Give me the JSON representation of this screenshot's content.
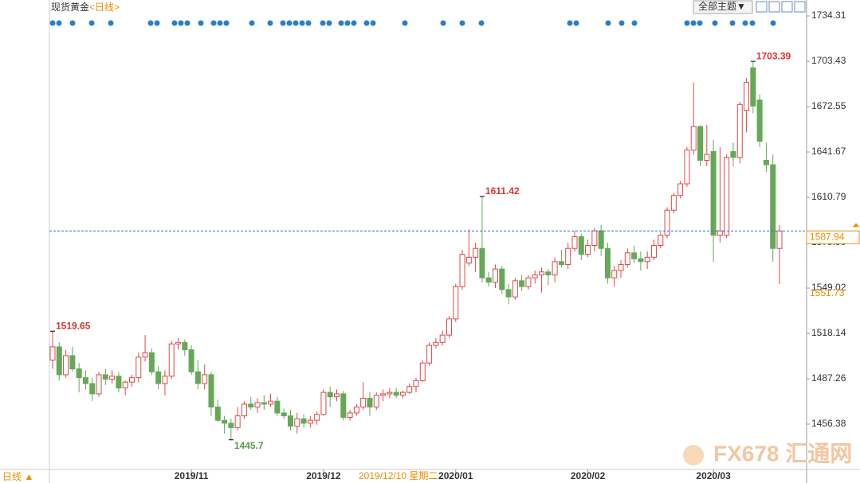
{
  "chart_data": {
    "type": "candlestick",
    "title": "现货黄金",
    "subtitle": "<日线>",
    "period_label": "日线 ▲",
    "theme_button": "全部主题▼",
    "crosshair_label": "2019/12/10 星期二",
    "watermark": "FX678 汇通网",
    "up_color": "#e04848",
    "down_color": "#64a858",
    "ylim": [
      1425.5,
      1743
    ],
    "yticks": [
      1456.38,
      1487.26,
      1518.14,
      1549.02,
      {
        "value": 1579.9,
        "label": "1579.90"
      },
      1610.79,
      1641.67,
      1672.55,
      1703.43,
      1734.31
    ],
    "categories": [
      null,
      null,
      null,
      null,
      null,
      null,
      null,
      null,
      null,
      null,
      null,
      null,
      null,
      null,
      null,
      null,
      null,
      null,
      null,
      null,
      null,
      "2019/11",
      null,
      null,
      null,
      null,
      null,
      null,
      null,
      null,
      null,
      null,
      null,
      null,
      null,
      null,
      null,
      null,
      null,
      null,
      null,
      "2019/12",
      null,
      null,
      null,
      null,
      null,
      null,
      null,
      null,
      null,
      null,
      null,
      null,
      null,
      null,
      null,
      null,
      null,
      null,
      null,
      "2020/01",
      null,
      null,
      null,
      null,
      null,
      null,
      null,
      null,
      null,
      null,
      null,
      null,
      null,
      null,
      null,
      null,
      null,
      null,
      null,
      "2020/02",
      null,
      null,
      null,
      null,
      null,
      null,
      null,
      null,
      null,
      null,
      null,
      null,
      null,
      null,
      null,
      null,
      null,
      null,
      "2020/03",
      null,
      null,
      null,
      null,
      null,
      null,
      null,
      null,
      null,
      null
    ],
    "ohlc": [
      [
        1500,
        1519.65,
        1494,
        1509
      ],
      [
        1509,
        1512,
        1486,
        1490
      ],
      [
        1490,
        1507,
        1488,
        1503
      ],
      [
        1503,
        1509,
        1492,
        1494
      ],
      [
        1494,
        1498,
        1478,
        1488
      ],
      [
        1488,
        1493,
        1480,
        1484
      ],
      [
        1484,
        1488,
        1472,
        1477
      ],
      [
        1477,
        1492,
        1475,
        1490
      ],
      [
        1490,
        1494,
        1483,
        1487
      ],
      [
        1487,
        1493,
        1484,
        1489
      ],
      [
        1489,
        1492,
        1478,
        1481
      ],
      [
        1481,
        1486,
        1476,
        1485
      ],
      [
        1485,
        1490,
        1482,
        1488
      ],
      [
        1488,
        1505,
        1485,
        1502
      ],
      [
        1502,
        1517,
        1499,
        1505
      ],
      [
        1505,
        1508,
        1490,
        1492
      ],
      [
        1492,
        1496,
        1480,
        1484
      ],
      [
        1484,
        1493,
        1476,
        1489
      ],
      [
        1489,
        1513,
        1487,
        1511
      ],
      [
        1511,
        1515,
        1507,
        1512
      ],
      [
        1512,
        1514,
        1503,
        1507
      ],
      [
        1507,
        1510,
        1490,
        1492
      ],
      [
        1492,
        1500,
        1480,
        1484
      ],
      [
        1484,
        1497,
        1480,
        1490
      ],
      [
        1490,
        1492,
        1462,
        1468
      ],
      [
        1468,
        1473,
        1458,
        1459
      ],
      [
        1459,
        1462,
        1450,
        1457
      ],
      [
        1457,
        1460,
        1445.7,
        1454
      ],
      [
        1454,
        1468,
        1452,
        1462
      ],
      [
        1462,
        1472,
        1460,
        1470
      ],
      [
        1470,
        1475,
        1466,
        1468
      ],
      [
        1468,
        1474,
        1464,
        1471
      ],
      [
        1471,
        1476,
        1466,
        1470
      ],
      [
        1470,
        1477,
        1468,
        1472
      ],
      [
        1472,
        1475,
        1462,
        1464
      ],
      [
        1464,
        1467,
        1460,
        1462
      ],
      [
        1462,
        1466,
        1452,
        1455
      ],
      [
        1455,
        1464,
        1450,
        1460
      ],
      [
        1460,
        1463,
        1454,
        1457
      ],
      [
        1457,
        1462,
        1454,
        1459
      ],
      [
        1459,
        1465,
        1456,
        1463
      ],
      [
        1463,
        1480,
        1462,
        1478
      ],
      [
        1478,
        1482,
        1468,
        1475
      ],
      [
        1475,
        1480,
        1472,
        1477
      ],
      [
        1477,
        1479,
        1459,
        1461
      ],
      [
        1461,
        1466,
        1459,
        1464
      ],
      [
        1464,
        1470,
        1462,
        1468
      ],
      [
        1468,
        1485,
        1466,
        1474
      ],
      [
        1474,
        1478,
        1462,
        1468
      ],
      [
        1468,
        1478,
        1466,
        1476
      ],
      [
        1476,
        1480,
        1472,
        1477
      ],
      [
        1477,
        1481,
        1474,
        1478
      ],
      [
        1478,
        1481,
        1474,
        1476
      ],
      [
        1476,
        1479,
        1474,
        1478
      ],
      [
        1478,
        1484,
        1477,
        1482
      ],
      [
        1482,
        1488,
        1478,
        1486
      ],
      [
        1486,
        1500,
        1485,
        1498
      ],
      [
        1498,
        1512,
        1496,
        1510
      ],
      [
        1510,
        1515,
        1508,
        1512
      ],
      [
        1512,
        1520,
        1510,
        1517
      ],
      [
        1517,
        1530,
        1515,
        1528
      ],
      [
        1528,
        1552,
        1526,
        1550
      ],
      [
        1550,
        1575,
        1548,
        1572
      ],
      [
        1566,
        1589,
        1564,
        1570
      ],
      [
        1570,
        1580,
        1560,
        1576
      ],
      [
        1576,
        1611.42,
        1553,
        1556
      ],
      [
        1556,
        1560,
        1550,
        1553
      ],
      [
        1553,
        1565,
        1549,
        1562
      ],
      [
        1562,
        1564,
        1545,
        1548
      ],
      [
        1548,
        1552,
        1538,
        1543
      ],
      [
        1543,
        1556,
        1541,
        1554
      ],
      [
        1554,
        1558,
        1547,
        1550
      ],
      [
        1550,
        1558,
        1548,
        1556
      ],
      [
        1556,
        1561,
        1552,
        1558
      ],
      [
        1558,
        1563,
        1546,
        1560
      ],
      [
        1560,
        1562,
        1551,
        1558
      ],
      [
        1558,
        1570,
        1553,
        1567
      ],
      [
        1567,
        1575,
        1563,
        1565
      ],
      [
        1565,
        1580,
        1562,
        1576
      ],
      [
        1576,
        1588,
        1574,
        1584
      ],
      [
        1584,
        1586,
        1568,
        1572
      ],
      [
        1572,
        1582,
        1570,
        1578
      ],
      [
        1578,
        1590,
        1574,
        1588
      ],
      [
        1588,
        1592,
        1571,
        1576
      ],
      [
        1576,
        1580,
        1552,
        1556
      ],
      [
        1556,
        1564,
        1550,
        1561
      ],
      [
        1561,
        1568,
        1556,
        1565
      ],
      [
        1565,
        1576,
        1563,
        1573
      ],
      [
        1573,
        1578,
        1566,
        1569
      ],
      [
        1569,
        1574,
        1561,
        1567
      ],
      [
        1567,
        1574,
        1562,
        1570
      ],
      [
        1570,
        1582,
        1568,
        1578
      ],
      [
        1578,
        1587,
        1576,
        1585
      ],
      [
        1585,
        1604,
        1583,
        1602
      ],
      [
        1602,
        1614,
        1600,
        1612
      ],
      [
        1612,
        1622,
        1610,
        1620
      ],
      [
        1620,
        1645,
        1618,
        1643
      ],
      [
        1643,
        1689,
        1640,
        1659
      ],
      [
        1659,
        1660,
        1632,
        1636
      ],
      [
        1636,
        1660,
        1632,
        1640
      ],
      [
        1642,
        1650,
        1567,
        1585
      ],
      [
        1585,
        1645,
        1580,
        1588
      ],
      [
        1585,
        1640,
        1583,
        1638
      ],
      [
        1642,
        1648,
        1632,
        1638
      ],
      [
        1638,
        1676,
        1634,
        1674
      ],
      [
        1670,
        1692,
        1655,
        1689
      ],
      [
        1699,
        1703.39,
        1668,
        1673
      ],
      [
        1677,
        1681,
        1645,
        1649
      ],
      [
        1636,
        1648,
        1628,
        1633
      ],
      [
        1633,
        1640,
        1567,
        1576
      ],
      [
        1576,
        1592,
        1551.73,
        1587.94
      ]
    ]
  }
}
